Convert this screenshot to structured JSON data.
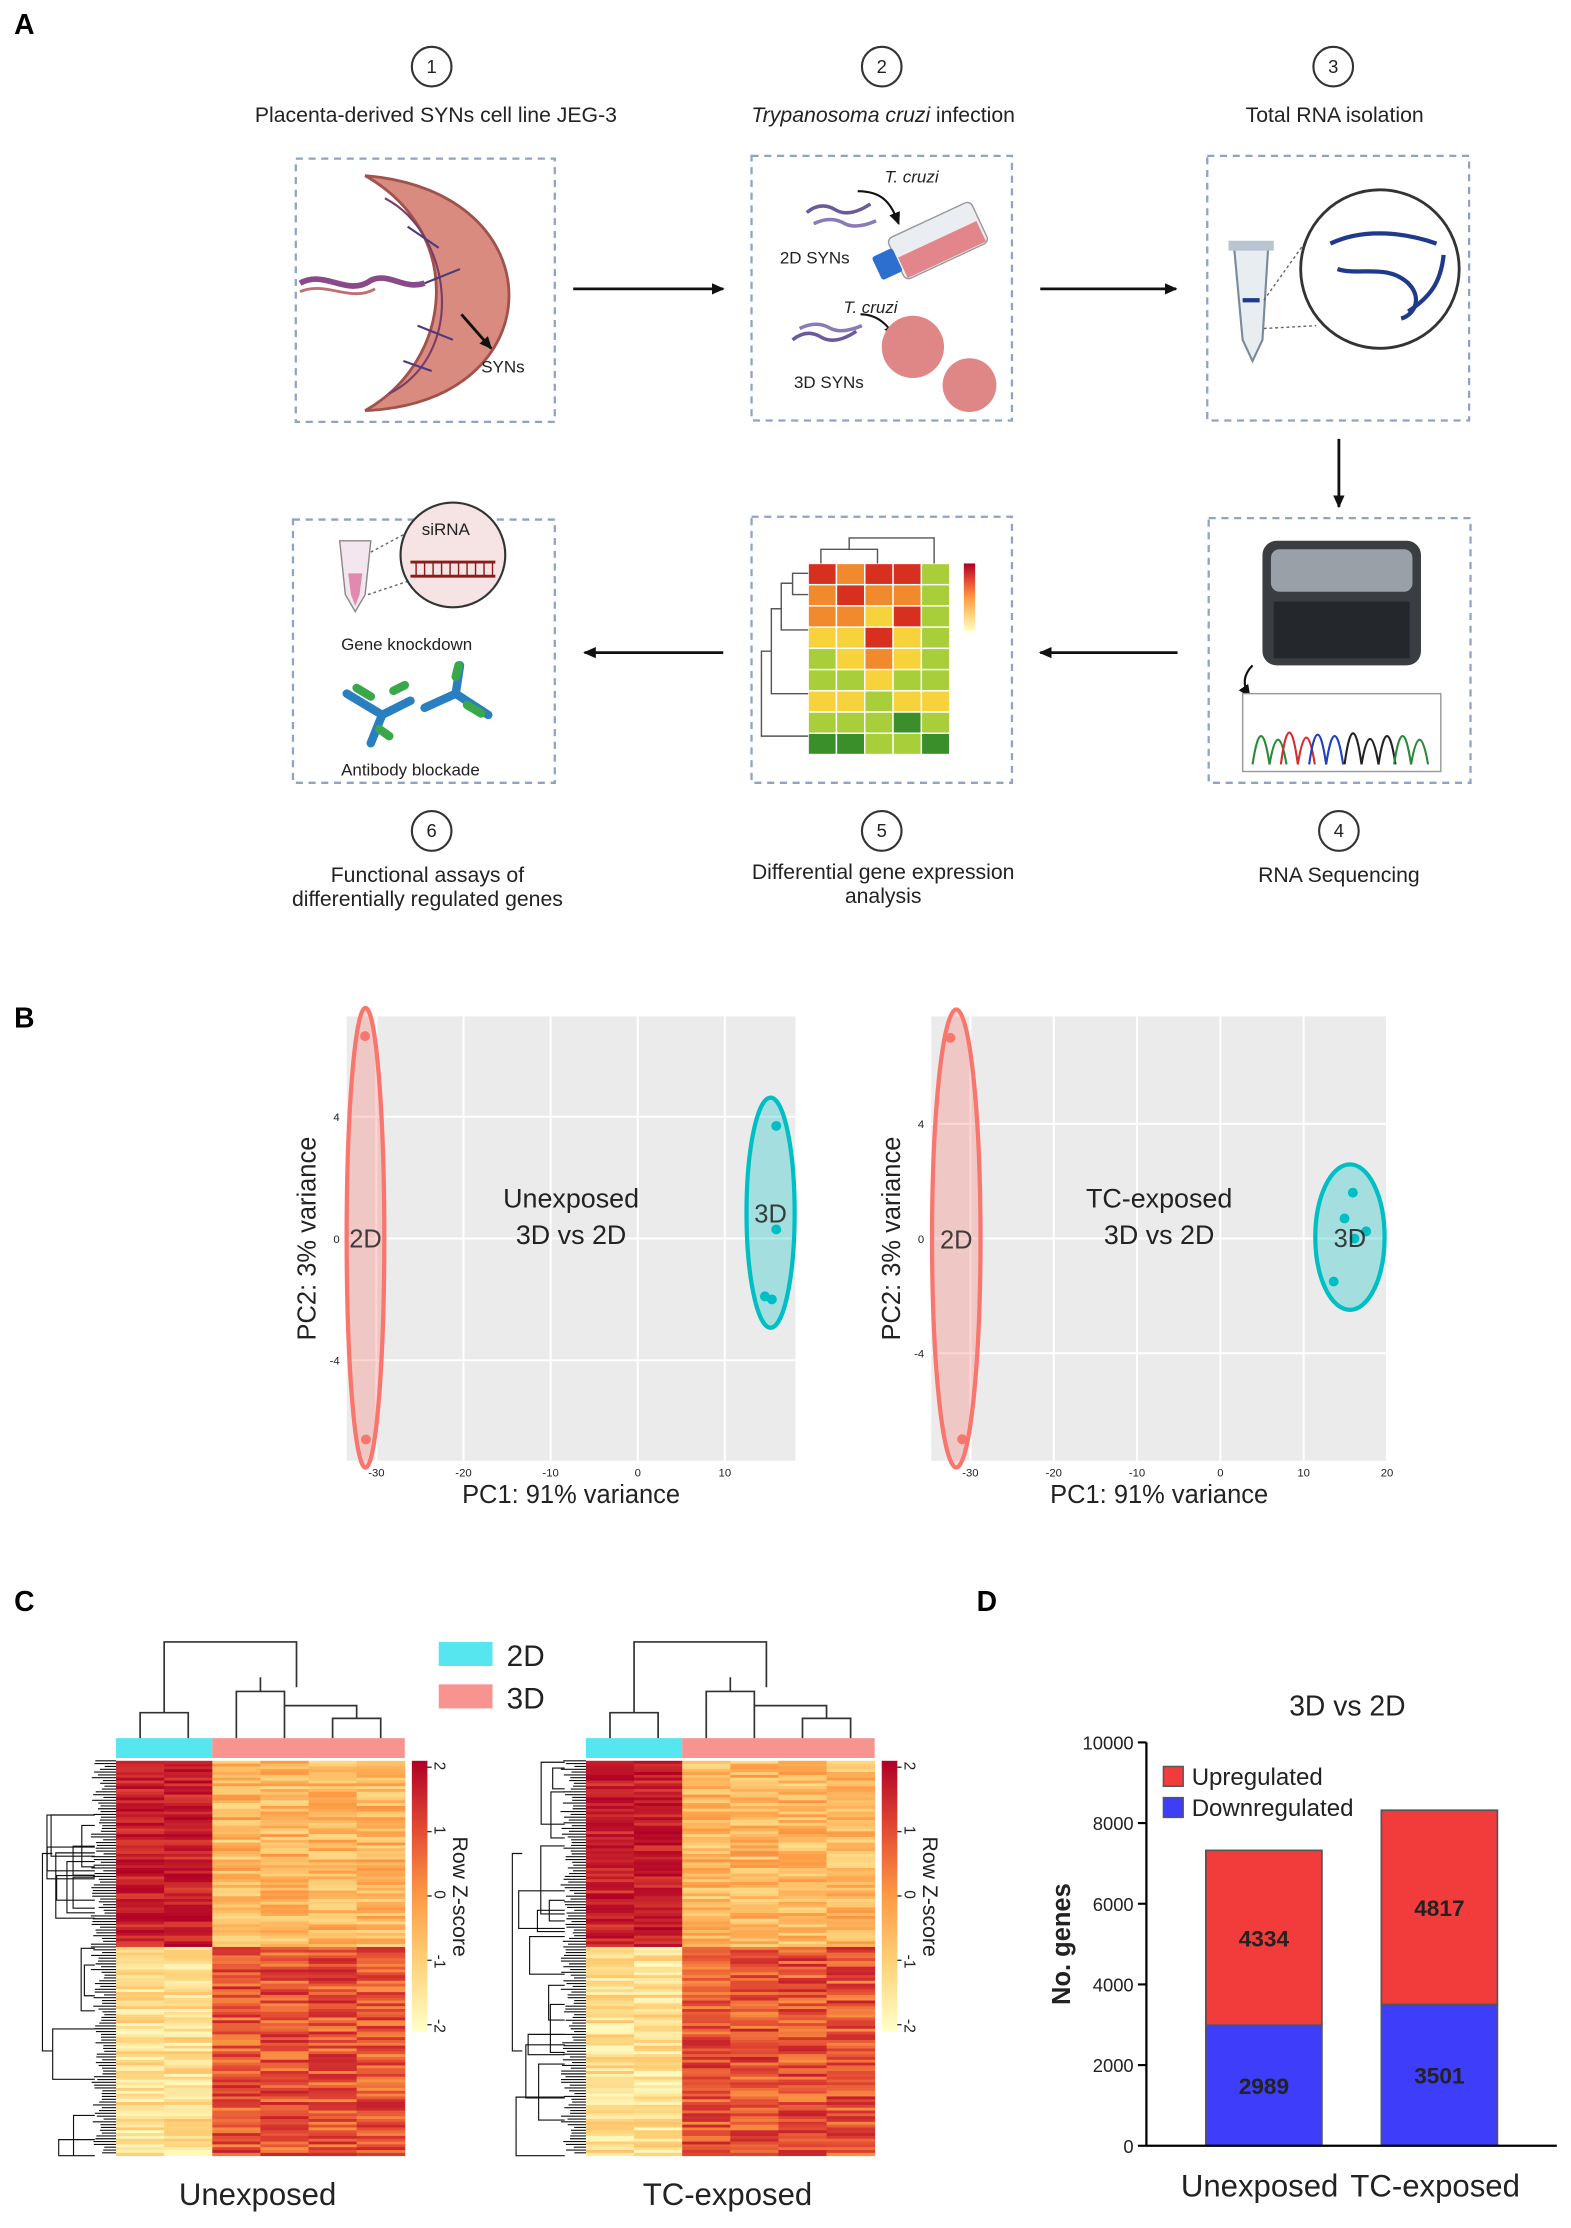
{
  "panel_labels": [
    "A",
    "B",
    "C",
    "D"
  ],
  "workflow": {
    "steps": [
      {
        "number": "1",
        "title": [
          "Placenta-derived SYNs cell line JEG-3"
        ],
        "labels": [
          "SYNs"
        ]
      },
      {
        "number": "2",
        "title_italic": "Trypanosoma cruzi",
        "title": [
          "infection"
        ],
        "labels": [
          "T. cruzi",
          "2D SYNs",
          "T. cruzi",
          "3D SYNs"
        ]
      },
      {
        "number": "3",
        "title": [
          "Total RNA isolation"
        ]
      },
      {
        "number": "4",
        "title": [
          "RNA Sequencing"
        ]
      },
      {
        "number": "5",
        "title": [
          "Differential gene expression",
          "analysis"
        ]
      },
      {
        "number": "6",
        "title": [
          "Functional assays of",
          "differentially regulated genes"
        ],
        "labels": [
          "siRNA",
          "Gene knockdown",
          "Antibody blockade"
        ]
      }
    ]
  },
  "chart_data": [
    {
      "type": "scatter",
      "annotation": [
        "Unexposed",
        "3D vs 2D"
      ],
      "xlabel": "PC1: 91% variance",
      "ylabel": "PC2: 3% variance",
      "xlim": [
        -33.4,
        18.1
      ],
      "xticks": [
        -30,
        -20,
        -10,
        0,
        10
      ],
      "ylim": [
        -7.3,
        7.3
      ],
      "yticks": [
        -4,
        0,
        4
      ],
      "grid": true,
      "series": [
        {
          "name": "2D",
          "color": "#f8766d",
          "x": [
            -31.3,
            -31.2
          ],
          "values": [
            6.65,
            -6.6
          ]
        },
        {
          "name": "3D",
          "color": "#00bfc4",
          "x": [
            15.9,
            15.9,
            14.6,
            15.4
          ],
          "values": [
            3.7,
            0.3,
            -1.9,
            -2.0
          ]
        }
      ]
    },
    {
      "type": "scatter",
      "annotation": [
        "TC-exposed",
        "3D vs 2D"
      ],
      "xlabel": "PC1: 91% variance",
      "ylabel": "PC2: 3% variance",
      "xlim": [
        -34.7,
        20
      ],
      "xticks": [
        -30,
        -20,
        -10,
        0,
        10,
        20
      ],
      "ylim": [
        -7.75,
        7.75
      ],
      "yticks": [
        -4,
        0,
        4
      ],
      "grid": true,
      "series": [
        {
          "name": "2D",
          "color": "#f8766d",
          "x": [
            -32.4,
            -31
          ],
          "values": [
            7.0,
            -7.0
          ]
        },
        {
          "name": "3D",
          "color": "#00bfc4",
          "x": [
            15.9,
            14.9,
            17.5,
            16.1,
            13.6
          ],
          "values": [
            1.6,
            0.7,
            0.25,
            0,
            -1.5
          ]
        }
      ]
    },
    {
      "type": "bar",
      "stacked": true,
      "title": "3D vs 2D",
      "ylabel": "No. genes",
      "categories": [
        "Unexposed",
        "TC-exposed"
      ],
      "ylim": [
        0,
        10000
      ],
      "yticks": [
        0,
        2000,
        4000,
        6000,
        8000,
        10000
      ],
      "legend": "upper left",
      "value_label_color": "#ffff33",
      "series": [
        {
          "name": "Upregulated",
          "color": "#f23b3b",
          "values": [
            4334,
            4817
          ]
        },
        {
          "name": "Downregulated",
          "color": "#3d3dfa",
          "values": [
            2989,
            3501
          ]
        }
      ]
    }
  ],
  "heatmaps": {
    "legend": [
      {
        "name": "2D",
        "color": "#55e6f0"
      },
      {
        "name": "3D",
        "color": "#f7948f"
      }
    ],
    "colorbar_label": "Row Z-score",
    "colorbar_lim": [
      -2.1,
      2.1
    ],
    "colorbar_ticks": [
      2,
      1,
      0,
      -1,
      -2
    ],
    "panels": [
      "Unexposed",
      "TC-exposed"
    ]
  }
}
